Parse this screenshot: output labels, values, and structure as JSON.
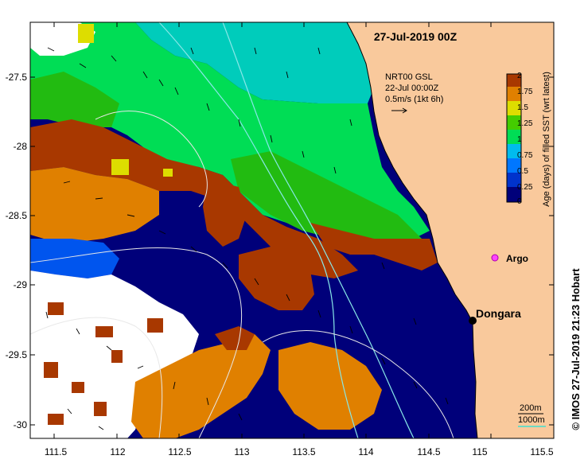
{
  "map": {
    "title": "27-Jul-2019 00Z",
    "product": {
      "line1": "NRT00 GSL",
      "line2": "22-Jul 00:00Z",
      "line3": "0.5m/s (1kt 6h)"
    },
    "colorbar": {
      "label": "Age (days) of filled SST (wrt latest)",
      "ticks": [
        "2",
        "1.75",
        "1.5",
        "1.25",
        "1",
        "0.75",
        "0.5",
        "0.25",
        "0"
      ],
      "colors": [
        "#00007a",
        "#0033cc",
        "#0077ff",
        "#00bbee",
        "#00dd55",
        "#44cc00",
        "#dddd00",
        "#e08000",
        "#a83800"
      ]
    },
    "y_ticks": [
      "-27.5",
      "-28",
      "-28.5",
      "-29",
      "-29.5",
      "-30"
    ],
    "x_ticks": [
      "111.5",
      "112",
      "112.5",
      "113",
      "113.5",
      "114",
      "114.5",
      "115",
      "115.5"
    ],
    "places": {
      "argo": "Argo",
      "dongara": "Dongara"
    },
    "contour_legend": {
      "c200": "200m",
      "c1000": "1000m"
    },
    "credit": "© IMOS 27-Jul-2019 21:23 Hobart",
    "colors": {
      "land": "#f9c99c",
      "navy": "#00007a",
      "rust": "#a83800",
      "orange": "#e08000",
      "green": "#00dd55",
      "lime": "#44cc00",
      "turquoise": "#00ccbb",
      "blue": "#0055ee",
      "yellow": "#dddd00"
    }
  }
}
